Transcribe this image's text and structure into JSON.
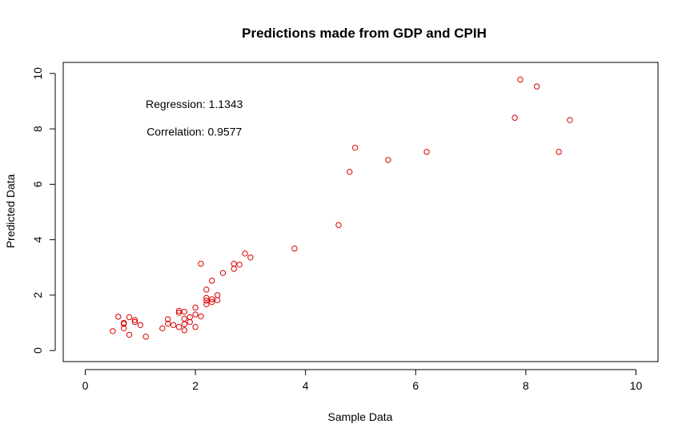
{
  "chart_data": {
    "type": "scatter",
    "title": "Predictions made from GDP and CPIH",
    "xlabel": "Sample Data",
    "ylabel": "Predicted Data",
    "xlim": [
      -0.4,
      10.4
    ],
    "ylim": [
      -0.4,
      10.4
    ],
    "x_ticks": [
      0,
      2,
      4,
      6,
      8,
      10
    ],
    "y_ticks": [
      0,
      2,
      4,
      6,
      8,
      10
    ],
    "grid": false,
    "point_color": "#dd0000",
    "annotations": [
      {
        "text": "Regression: 1.1343",
        "x": 1.98,
        "y": 8.9
      },
      {
        "text": "Correlation: 0.9577",
        "x": 1.98,
        "y": 7.9
      }
    ],
    "points": [
      {
        "x": 0.5,
        "y": 0.7
      },
      {
        "x": 0.6,
        "y": 1.22
      },
      {
        "x": 0.7,
        "y": 0.8
      },
      {
        "x": 0.7,
        "y": 0.96
      },
      {
        "x": 0.7,
        "y": 1.0
      },
      {
        "x": 0.8,
        "y": 0.57
      },
      {
        "x": 0.8,
        "y": 1.2
      },
      {
        "x": 0.9,
        "y": 1.03
      },
      {
        "x": 0.9,
        "y": 1.1
      },
      {
        "x": 1.0,
        "y": 0.92
      },
      {
        "x": 1.1,
        "y": 0.5
      },
      {
        "x": 1.4,
        "y": 0.8
      },
      {
        "x": 1.5,
        "y": 0.97
      },
      {
        "x": 1.5,
        "y": 1.13
      },
      {
        "x": 1.6,
        "y": 0.92
      },
      {
        "x": 1.7,
        "y": 0.85
      },
      {
        "x": 1.7,
        "y": 1.36
      },
      {
        "x": 1.7,
        "y": 1.43
      },
      {
        "x": 1.8,
        "y": 0.73
      },
      {
        "x": 1.8,
        "y": 0.95
      },
      {
        "x": 1.8,
        "y": 1.15
      },
      {
        "x": 1.8,
        "y": 1.4
      },
      {
        "x": 1.9,
        "y": 1.03
      },
      {
        "x": 1.9,
        "y": 1.2
      },
      {
        "x": 2.0,
        "y": 0.85
      },
      {
        "x": 2.0,
        "y": 1.3
      },
      {
        "x": 2.0,
        "y": 1.55
      },
      {
        "x": 2.1,
        "y": 1.23
      },
      {
        "x": 2.1,
        "y": 3.13
      },
      {
        "x": 2.2,
        "y": 1.67
      },
      {
        "x": 2.2,
        "y": 1.8
      },
      {
        "x": 2.2,
        "y": 1.9
      },
      {
        "x": 2.2,
        "y": 2.2
      },
      {
        "x": 2.3,
        "y": 1.75
      },
      {
        "x": 2.3,
        "y": 1.85
      },
      {
        "x": 2.3,
        "y": 2.52
      },
      {
        "x": 2.4,
        "y": 1.82
      },
      {
        "x": 2.4,
        "y": 2.0
      },
      {
        "x": 2.5,
        "y": 2.8
      },
      {
        "x": 2.7,
        "y": 2.95
      },
      {
        "x": 2.7,
        "y": 3.13
      },
      {
        "x": 2.8,
        "y": 3.1
      },
      {
        "x": 2.9,
        "y": 3.5
      },
      {
        "x": 3.0,
        "y": 3.36
      },
      {
        "x": 3.8,
        "y": 3.68
      },
      {
        "x": 4.6,
        "y": 4.53
      },
      {
        "x": 4.8,
        "y": 6.45
      },
      {
        "x": 4.9,
        "y": 7.32
      },
      {
        "x": 5.5,
        "y": 6.88
      },
      {
        "x": 6.2,
        "y": 7.17
      },
      {
        "x": 7.8,
        "y": 8.4
      },
      {
        "x": 7.9,
        "y": 9.78
      },
      {
        "x": 8.2,
        "y": 9.53
      },
      {
        "x": 8.6,
        "y": 7.17
      },
      {
        "x": 8.8,
        "y": 8.32
      }
    ]
  }
}
